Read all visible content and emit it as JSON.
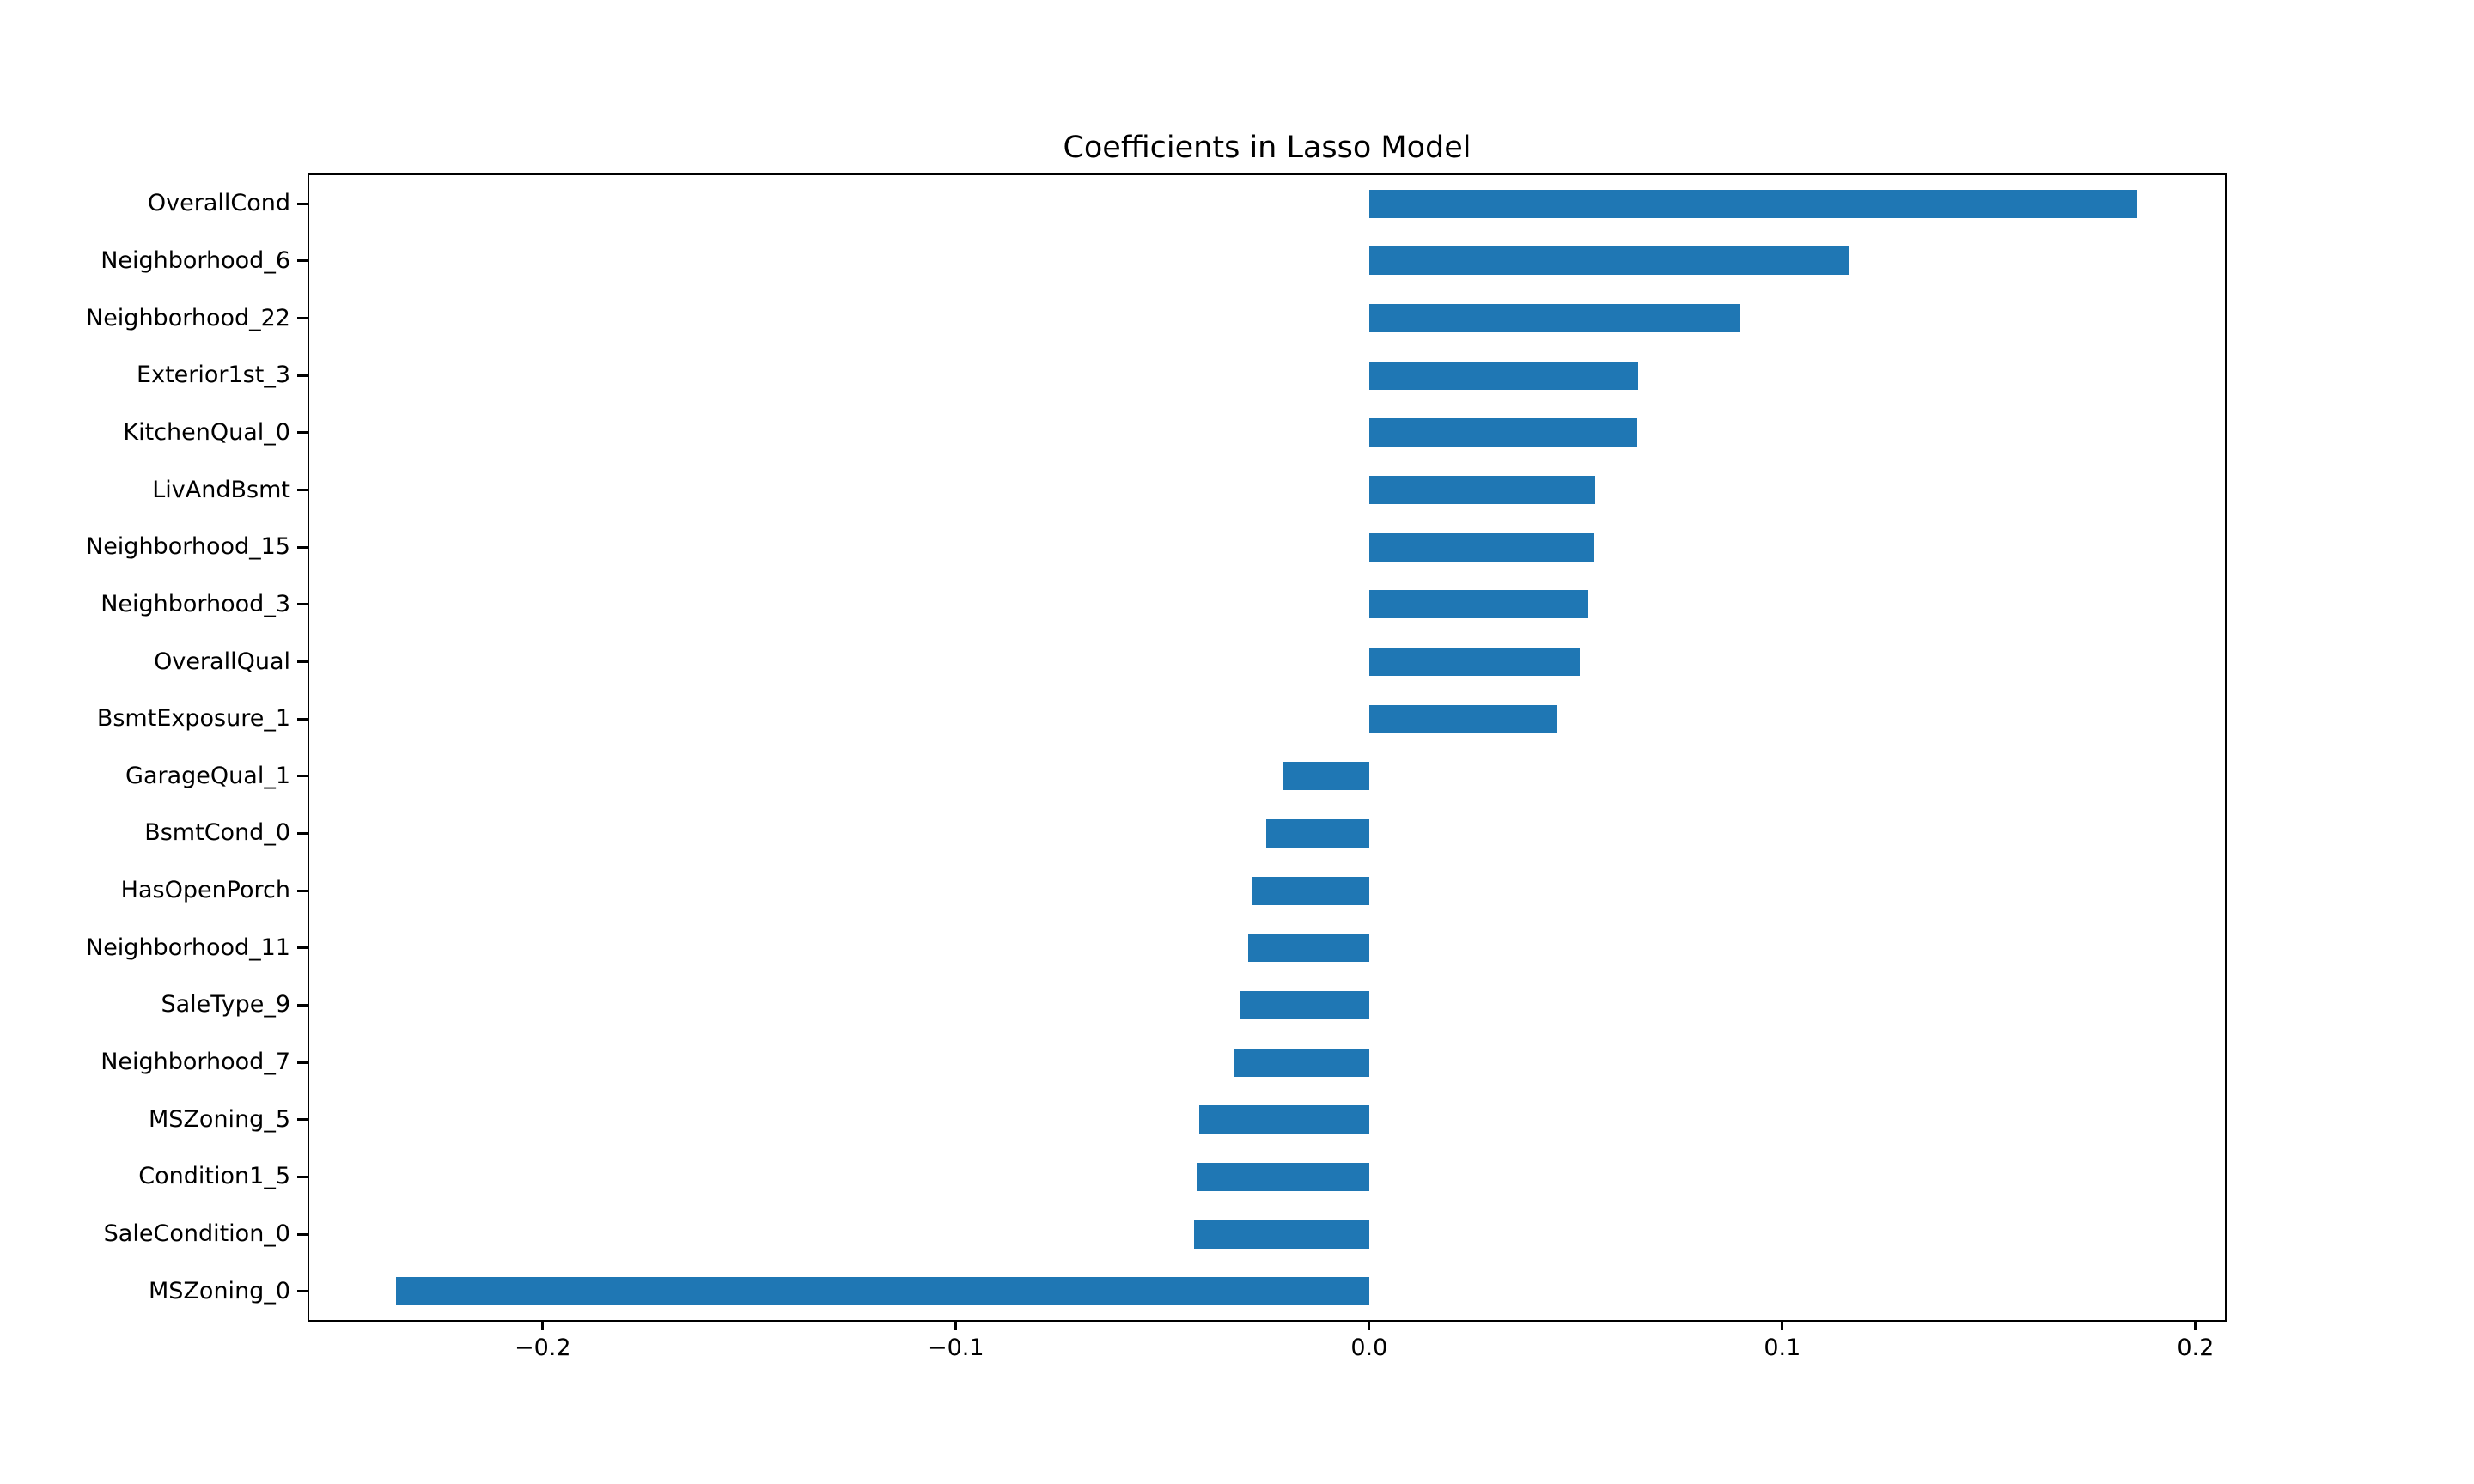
{
  "title": "Coefficients in Lasso Model",
  "chart_data": {
    "type": "bar",
    "orientation": "horizontal",
    "title": "Coefficients in Lasso Model",
    "xlabel": "",
    "ylabel": "",
    "grid": false,
    "legend": null,
    "bar_color": "#1f77b4",
    "xlim": [
      -0.2565,
      0.2071
    ],
    "xticks": [
      -0.2,
      -0.1,
      0.0,
      0.1,
      0.2
    ],
    "xtick_labels": [
      "−0.2",
      "−0.1",
      "0.0",
      "0.1",
      "0.2"
    ],
    "categories": [
      "OverallCond",
      "Neighborhood_6",
      "Neighborhood_22",
      "Exterior1st_3",
      "KitchenQual_0",
      "LivAndBsmt",
      "Neighborhood_15",
      "Neighborhood_3",
      "OverallQual",
      "BsmtExposure_1",
      "GarageQual_1",
      "BsmtCond_0",
      "HasOpenPorch",
      "Neighborhood_11",
      "SaleType_9",
      "Neighborhood_7",
      "MSZoning_5",
      "Condition1_5",
      "SaleCondition_0",
      "MSZoning_0"
    ],
    "values": [
      0.186,
      0.116,
      0.0896,
      0.0651,
      0.065,
      0.0548,
      0.0546,
      0.053,
      0.0509,
      0.0456,
      -0.0209,
      -0.025,
      -0.0282,
      -0.0293,
      -0.0311,
      -0.0329,
      -0.0412,
      -0.0418,
      -0.0423,
      -0.2354
    ]
  }
}
